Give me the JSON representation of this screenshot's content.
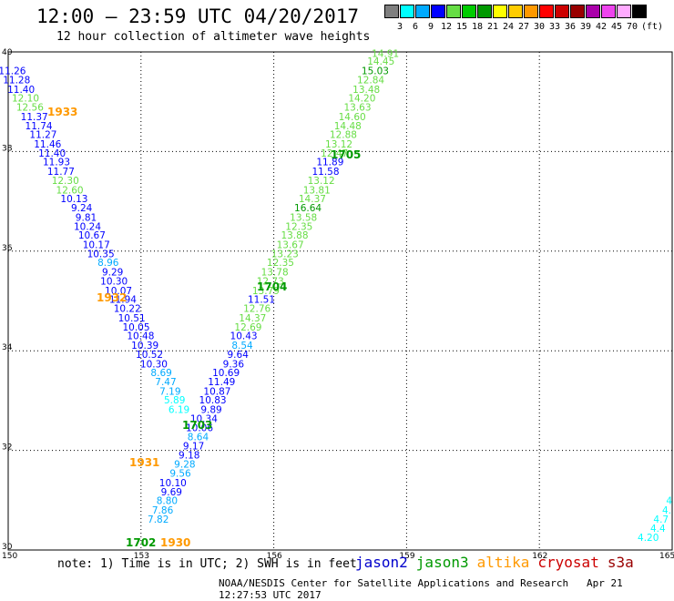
{
  "header": {
    "title": "12:00 — 23:59 UTC 04/20/2017",
    "subtitle": "12 hour collection of altimeter wave heights"
  },
  "scale": {
    "colors": [
      "#7f7f7f",
      "#00ffff",
      "#00aaff",
      "#0000ff",
      "#66dd44",
      "#00cc00",
      "#009900",
      "#ffff00",
      "#ffcc00",
      "#ff9900",
      "#ff0000",
      "#cc0000",
      "#990000",
      "#aa00aa",
      "#ee44ee",
      "#ffaaff",
      "#000000"
    ],
    "labels": [
      "3",
      "6",
      "9",
      "12",
      "15",
      "18",
      "21",
      "24",
      "27",
      "30",
      "33",
      "36",
      "39",
      "42",
      "45",
      "70"
    ],
    "unit": "(ft)"
  },
  "map": {
    "lon_min": 150,
    "lon_max": 165,
    "lat_min": 30,
    "lat_max": 40,
    "lon_ticks": [
      "150",
      "153",
      "156",
      "159",
      "162",
      "165"
    ],
    "lat_ticks": [
      "40",
      "38",
      "36",
      "34",
      "32",
      "30"
    ],
    "track_labels": [
      {
        "text": "1933",
        "color": "#ff9900"
      },
      {
        "text": "1932",
        "color": "#ff9900"
      },
      {
        "text": "1931",
        "color": "#ff9900"
      },
      {
        "text": "1930",
        "color": "#ff9900"
      },
      {
        "text": "1705",
        "color": "#009900"
      },
      {
        "text": "1704",
        "color": "#009900"
      },
      {
        "text": "1703",
        "color": "#009900"
      },
      {
        "text": "1702",
        "color": "#009900"
      }
    ],
    "points": [
      {
        "v": "14.91",
        "c": "#66dd44",
        "lon": 158.83,
        "lat": 39.9
      },
      {
        "v": "14.45",
        "c": "#66dd44",
        "lon": 158.73,
        "lat": 39.74
      },
      {
        "v": "15.03",
        "c": "#009900",
        "lon": 158.6,
        "lat": 39.55
      },
      {
        "v": "12.84",
        "c": "#66dd44",
        "lon": 158.5,
        "lat": 39.37
      },
      {
        "v": "13.48",
        "c": "#66dd44",
        "lon": 158.4,
        "lat": 39.18
      },
      {
        "v": "14.20",
        "c": "#66dd44",
        "lon": 158.3,
        "lat": 39.0
      },
      {
        "v": "13.63",
        "c": "#66dd44",
        "lon": 158.2,
        "lat": 38.82
      },
      {
        "v": "14.60",
        "c": "#66dd44",
        "lon": 158.08,
        "lat": 38.63
      },
      {
        "v": "14.48",
        "c": "#66dd44",
        "lon": 157.98,
        "lat": 38.45
      },
      {
        "v": "12.88",
        "c": "#66dd44",
        "lon": 157.88,
        "lat": 38.27
      },
      {
        "v": "13.12",
        "c": "#66dd44",
        "lon": 157.78,
        "lat": 38.08
      },
      {
        "v": "12.47",
        "c": "#66dd44",
        "lon": 157.68,
        "lat": 37.9
      },
      {
        "v": "11.89",
        "c": "#0000ff",
        "lon": 157.58,
        "lat": 37.72
      },
      {
        "v": "11.58",
        "c": "#0000ff",
        "lon": 157.48,
        "lat": 37.53
      },
      {
        "v": "13.12",
        "c": "#66dd44",
        "lon": 157.38,
        "lat": 37.35
      },
      {
        "v": "13.81",
        "c": "#66dd44",
        "lon": 157.28,
        "lat": 37.16
      },
      {
        "v": "14.37",
        "c": "#66dd44",
        "lon": 157.18,
        "lat": 36.98
      },
      {
        "v": "16.64",
        "c": "#009900",
        "lon": 157.08,
        "lat": 36.8
      },
      {
        "v": "13.58",
        "c": "#66dd44",
        "lon": 156.98,
        "lat": 36.61
      },
      {
        "v": "12.35",
        "c": "#66dd44",
        "lon": 156.88,
        "lat": 36.43
      },
      {
        "v": "13.88",
        "c": "#66dd44",
        "lon": 156.78,
        "lat": 36.25
      },
      {
        "v": "13.67",
        "c": "#66dd44",
        "lon": 156.68,
        "lat": 36.06
      },
      {
        "v": "13.23",
        "c": "#66dd44",
        "lon": 156.56,
        "lat": 35.88
      },
      {
        "v": "12.35",
        "c": "#66dd44",
        "lon": 156.46,
        "lat": 35.7
      },
      {
        "v": "13.78",
        "c": "#66dd44",
        "lon": 156.33,
        "lat": 35.51
      },
      {
        "v": "12.73",
        "c": "#66dd44",
        "lon": 156.23,
        "lat": 35.33
      },
      {
        "v": "13.79",
        "c": "#66dd44",
        "lon": 156.13,
        "lat": 35.14
      },
      {
        "v": "11.51",
        "c": "#0000ff",
        "lon": 156.03,
        "lat": 34.96
      },
      {
        "v": "12.76",
        "c": "#66dd44",
        "lon": 155.93,
        "lat": 34.78
      },
      {
        "v": "14.37",
        "c": "#66dd44",
        "lon": 155.83,
        "lat": 34.59
      },
      {
        "v": "12.69",
        "c": "#66dd44",
        "lon": 155.73,
        "lat": 34.41
      },
      {
        "v": "10.43",
        "c": "#0000ff",
        "lon": 155.63,
        "lat": 34.23
      },
      {
        "v": "8.54",
        "c": "#00aaff",
        "lon": 155.53,
        "lat": 34.04
      },
      {
        "v": "9.64",
        "c": "#0000ff",
        "lon": 155.43,
        "lat": 33.86
      },
      {
        "v": "9.36",
        "c": "#0000ff",
        "lon": 155.33,
        "lat": 33.67
      },
      {
        "v": "10.69",
        "c": "#0000ff",
        "lon": 155.23,
        "lat": 33.49
      },
      {
        "v": "11.49",
        "c": "#0000ff",
        "lon": 155.13,
        "lat": 33.31
      },
      {
        "v": "10.87",
        "c": "#0000ff",
        "lon": 155.03,
        "lat": 33.12
      },
      {
        "v": "10.83",
        "c": "#0000ff",
        "lon": 154.93,
        "lat": 32.94
      },
      {
        "v": "9.89",
        "c": "#0000ff",
        "lon": 154.83,
        "lat": 32.75
      },
      {
        "v": "10.34",
        "c": "#0000ff",
        "lon": 154.73,
        "lat": 32.57
      },
      {
        "v": "10.06",
        "c": "#0000ff",
        "lon": 154.63,
        "lat": 32.39
      },
      {
        "v": "8.64",
        "c": "#00aaff",
        "lon": 154.53,
        "lat": 32.2
      },
      {
        "v": "9.17",
        "c": "#0000ff",
        "lon": 154.43,
        "lat": 32.02
      },
      {
        "v": "9.18",
        "c": "#0000ff",
        "lon": 154.33,
        "lat": 31.84
      },
      {
        "v": "9.28",
        "c": "#00aaff",
        "lon": 154.23,
        "lat": 31.65
      },
      {
        "v": "9.56",
        "c": "#00aaff",
        "lon": 154.13,
        "lat": 31.47
      },
      {
        "v": "10.10",
        "c": "#0000ff",
        "lon": 154.03,
        "lat": 31.28
      },
      {
        "v": "9.69",
        "c": "#0000ff",
        "lon": 153.93,
        "lat": 31.1
      },
      {
        "v": "8.80",
        "c": "#00aaff",
        "lon": 153.83,
        "lat": 30.92
      },
      {
        "v": "7.86",
        "c": "#00aaff",
        "lon": 153.73,
        "lat": 30.73
      },
      {
        "v": "7.82",
        "c": "#00aaff",
        "lon": 153.63,
        "lat": 30.55
      },
      {
        "v": "11.26",
        "c": "#0000ff",
        "lon": 150.4,
        "lat": 39.55
      },
      {
        "v": "11.28",
        "c": "#0000ff",
        "lon": 150.5,
        "lat": 39.37
      },
      {
        "v": "11.40",
        "c": "#0000ff",
        "lon": 150.6,
        "lat": 39.18
      },
      {
        "v": "12.10",
        "c": "#66dd44",
        "lon": 150.7,
        "lat": 39.0
      },
      {
        "v": "12.56",
        "c": "#66dd44",
        "lon": 150.8,
        "lat": 38.82
      },
      {
        "v": "11.37",
        "c": "#0000ff",
        "lon": 150.9,
        "lat": 38.63
      },
      {
        "v": "11.74",
        "c": "#0000ff",
        "lon": 151.0,
        "lat": 38.45
      },
      {
        "v": "11.27",
        "c": "#0000ff",
        "lon": 151.1,
        "lat": 38.27
      },
      {
        "v": "11.46",
        "c": "#0000ff",
        "lon": 151.2,
        "lat": 38.08
      },
      {
        "v": "11.40",
        "c": "#0000ff",
        "lon": 151.3,
        "lat": 37.9
      },
      {
        "v": "11.93",
        "c": "#0000ff",
        "lon": 151.4,
        "lat": 37.72
      },
      {
        "v": "11.77",
        "c": "#0000ff",
        "lon": 151.5,
        "lat": 37.53
      },
      {
        "v": "12.30",
        "c": "#66dd44",
        "lon": 151.6,
        "lat": 37.35
      },
      {
        "v": "12.60",
        "c": "#66dd44",
        "lon": 151.7,
        "lat": 37.16
      },
      {
        "v": "10.13",
        "c": "#0000ff",
        "lon": 151.8,
        "lat": 36.98
      },
      {
        "v": "9.24",
        "c": "#0000ff",
        "lon": 151.9,
        "lat": 36.8
      },
      {
        "v": "9.81",
        "c": "#0000ff",
        "lon": 152.0,
        "lat": 36.61
      },
      {
        "v": "10.24",
        "c": "#0000ff",
        "lon": 152.1,
        "lat": 36.43
      },
      {
        "v": "10.67",
        "c": "#0000ff",
        "lon": 152.2,
        "lat": 36.25
      },
      {
        "v": "10.17",
        "c": "#0000ff",
        "lon": 152.3,
        "lat": 36.06
      },
      {
        "v": "10.35",
        "c": "#0000ff",
        "lon": 152.4,
        "lat": 35.88
      },
      {
        "v": "8.96",
        "c": "#00aaff",
        "lon": 152.5,
        "lat": 35.7
      },
      {
        "v": "9.29",
        "c": "#0000ff",
        "lon": 152.6,
        "lat": 35.51
      },
      {
        "v": "10.30",
        "c": "#0000ff",
        "lon": 152.7,
        "lat": 35.33
      },
      {
        "v": "10.07",
        "c": "#0000ff",
        "lon": 152.8,
        "lat": 35.14
      },
      {
        "v": "11.94",
        "c": "#0000ff",
        "lon": 152.9,
        "lat": 34.96
      },
      {
        "v": "10.22",
        "c": "#0000ff",
        "lon": 153.0,
        "lat": 34.78
      },
      {
        "v": "10.51",
        "c": "#0000ff",
        "lon": 153.1,
        "lat": 34.59
      },
      {
        "v": "10.05",
        "c": "#0000ff",
        "lon": 153.2,
        "lat": 34.41
      },
      {
        "v": "10.48",
        "c": "#0000ff",
        "lon": 153.3,
        "lat": 34.23
      },
      {
        "v": "10.39",
        "c": "#0000ff",
        "lon": 153.4,
        "lat": 34.04
      },
      {
        "v": "10.52",
        "c": "#0000ff",
        "lon": 153.5,
        "lat": 33.86
      },
      {
        "v": "10.30",
        "c": "#0000ff",
        "lon": 153.6,
        "lat": 33.67
      },
      {
        "v": "8.69",
        "c": "#00aaff",
        "lon": 153.7,
        "lat": 33.49
      },
      {
        "v": "7.47",
        "c": "#00aaff",
        "lon": 153.8,
        "lat": 33.31
      },
      {
        "v": "7.19",
        "c": "#00aaff",
        "lon": 153.9,
        "lat": 33.12
      },
      {
        "v": "5.89",
        "c": "#00ffff",
        "lon": 154.0,
        "lat": 32.94
      },
      {
        "v": "6.19",
        "c": "#00ffff",
        "lon": 154.1,
        "lat": 32.75
      },
      {
        "v": "4.20",
        "c": "#00ffff",
        "lon": 164.7,
        "lat": 30.18
      },
      {
        "v": "4.4",
        "c": "#00ffff",
        "lon": 164.85,
        "lat": 30.37
      },
      {
        "v": "4.7",
        "c": "#00ffff",
        "lon": 164.92,
        "lat": 30.55
      },
      {
        "v": "4.",
        "c": "#00ffff",
        "lon": 164.98,
        "lat": 30.73
      },
      {
        "v": "4",
        "c": "#00ffff",
        "lon": 165.0,
        "lat": 30.92
      }
    ]
  },
  "footer": {
    "note": "note:  1) Time is in UTC;  2) SWH is in feet",
    "credit": "NOAA/NESDIS Center for Satellite Applications and Research",
    "timestamp": "Apr 21 12:27:53 UTC 2017"
  },
  "legend": [
    {
      "name": "jason2",
      "color": "#0000cc"
    },
    {
      "name": "jason3",
      "color": "#009900"
    },
    {
      "name": "altika",
      "color": "#ff9900"
    },
    {
      "name": "cryosat",
      "color": "#cc0000"
    },
    {
      "name": "s3a",
      "color": "#990000"
    }
  ]
}
